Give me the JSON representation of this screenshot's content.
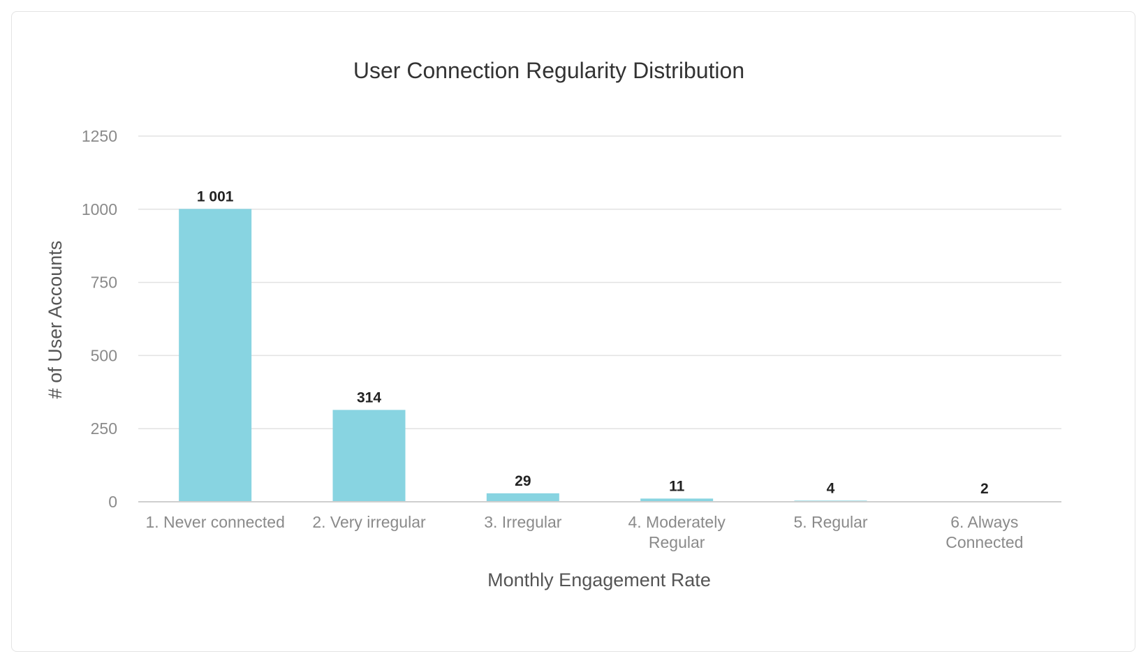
{
  "chart_data": {
    "type": "bar",
    "title": "User Connection Regularity Distribution",
    "xlabel": "Monthly Engagement Rate",
    "ylabel": "# of User Accounts",
    "categories": [
      [
        "1. Never connected"
      ],
      [
        "2. Very irregular"
      ],
      [
        "3. Irregular"
      ],
      [
        "4. Moderately",
        "Regular"
      ],
      [
        "5. Regular"
      ],
      [
        "6. Always",
        "Connected"
      ]
    ],
    "values": [
      1001,
      314,
      29,
      11,
      4,
      2
    ],
    "value_labels": [
      "1 001",
      "314",
      "29",
      "11",
      "4",
      "2"
    ],
    "yticks": [
      "0",
      "250",
      "500",
      "750",
      "1000",
      "1250"
    ],
    "ylim": [
      0,
      1250
    ],
    "grid": true,
    "legend": "none",
    "bar_color": "#88d4e1"
  }
}
